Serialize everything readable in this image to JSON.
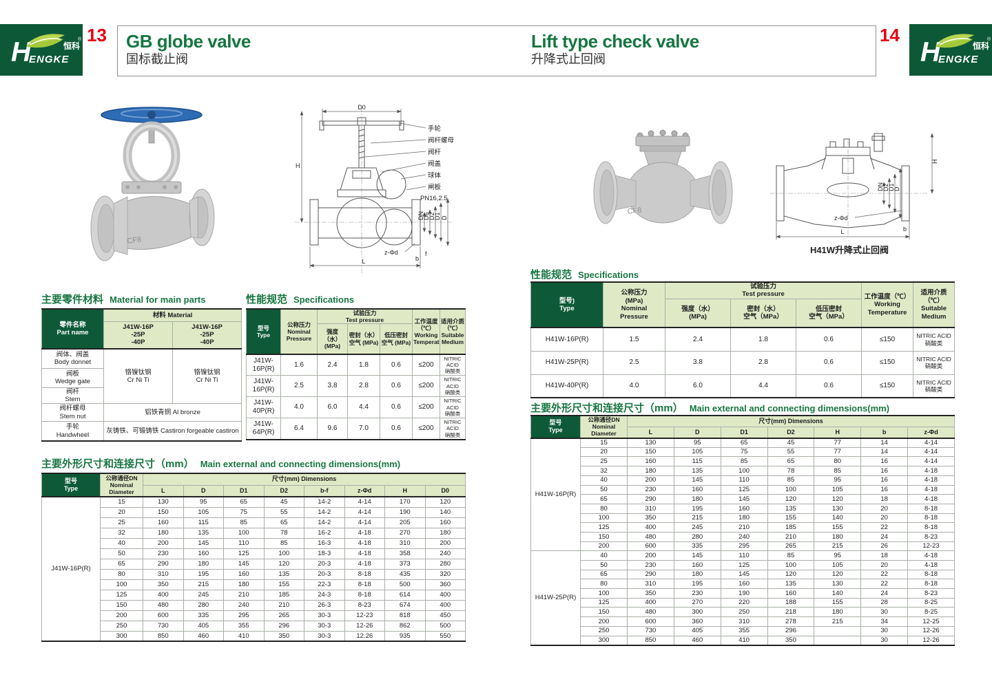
{
  "brand": {
    "h": "H",
    "engke": "ENGKE",
    "cn": "恒科",
    "reg": "®"
  },
  "header": {
    "left_page_num": "13",
    "right_page_num": "14",
    "left_title_en": "GB globe valve",
    "left_title_cn": "国标截止阀",
    "right_title_en": "Lift type check valve",
    "right_title_cn": "升降式止回阀"
  },
  "colors": {
    "dark_green": "#0d5937",
    "light_green": "#dfe9c6",
    "accent_green": "#177641",
    "red": "#e60012"
  },
  "left_page": {
    "material_section_cn": "主要零件材料",
    "material_section_en": "Material for main parts",
    "material_table": {
      "part_name": "零件名称\nPart name",
      "material": "材料 Material",
      "model_a": "J41W-16P\n-25P\n-40P",
      "model_b": "J41W-16P\n-25P\n-40P",
      "row_body": "阀体、阀盖\nBody donnet",
      "row_wedge": "阀板\nWedge gate",
      "row_stem": "阀杆\nStem",
      "row_stemnut": "阀杆螺母\nStem nut",
      "row_handwheel": "手轮\nHandwheel",
      "mat_crniti_a": "铬镍钛钢\nCr Ni Ti",
      "mat_crniti_b": "铬镍钛钢\nCr Ni Ti",
      "mat_bronze": "铝铁青铜 Al bronze",
      "mat_castiron": "灰铸铁、可锻铸铁 Castiron forgeable castiron"
    },
    "spec_section_cn": "性能规范",
    "spec_section_en": "Specifications",
    "spec_table": {
      "h_type": "型号\nType",
      "h_nominal": "公称压力\nNominal\nPressure",
      "h_test": "试验压力\nTest pressure",
      "h_strength": "强度（水）\n(MPa)",
      "h_seal": "密封（水）\n空气 (MPa)",
      "h_lowseal": "低压密封\n空气 (MPa)",
      "h_temp": "工作温度\n（℃）\nWorking\nTemperature",
      "h_medium": "适用介质\n（℃）\nSuitable\nMedium",
      "rows": [
        [
          "J41W-16P(R)",
          "1.6",
          "2.4",
          "1.8",
          "0.6",
          "≤200",
          "NITRIC ACID\n硝酸类"
        ],
        [
          "J41W-16P(R)",
          "2.5",
          "3.8",
          "2.8",
          "0.6",
          "≤200",
          "NITRIC ACID\n硝酸类"
        ],
        [
          "J41W-40P(R)",
          "4.0",
          "6.0",
          "4.4",
          "0.6",
          "≤200",
          "NITRIC ACID\n硝酸类"
        ],
        [
          "J41W-64P(R)",
          "6.4",
          "9.6",
          "7.0",
          "0.6",
          "≤200",
          "NITRIC ACID\n硝酸类"
        ]
      ]
    },
    "dim_section_cn": "主要外形尺寸和连接尺寸（mm）",
    "dim_section_en": "Main external and connecting dimensions(mm)",
    "dim_table": {
      "h_type": "型号\nType",
      "h_dn": "公称通径DN\nNominal\nDiameter",
      "h_dims": "尺寸(mm) Dimensions",
      "cols": [
        "L",
        "D",
        "D1",
        "D2",
        "b-f",
        "z-Φd",
        "H",
        "D0"
      ],
      "groups": [
        {
          "label": "J41W-16P(R)",
          "span": 14
        }
      ],
      "rows": [
        [
          "15",
          "130",
          "95",
          "65",
          "45",
          "14-2",
          "4-14",
          "170",
          "120"
        ],
        [
          "20",
          "150",
          "105",
          "75",
          "55",
          "14-2",
          "4-14",
          "190",
          "140"
        ],
        [
          "25",
          "160",
          "115",
          "85",
          "65",
          "14-2",
          "4-14",
          "205",
          "160"
        ],
        [
          "32",
          "180",
          "135",
          "100",
          "78",
          "16-2",
          "4-18",
          "270",
          "180"
        ],
        [
          "40",
          "200",
          "145",
          "110",
          "85",
          "16-3",
          "4-18",
          "310",
          "200"
        ],
        [
          "50",
          "230",
          "160",
          "125",
          "100",
          "18-3",
          "4-18",
          "358",
          "240"
        ],
        [
          "65",
          "290",
          "180",
          "145",
          "120",
          "20-3",
          "4-18",
          "373",
          "280"
        ],
        [
          "80",
          "310",
          "195",
          "160",
          "135",
          "20-3",
          "8-18",
          "435",
          "320"
        ],
        [
          "100",
          "350",
          "215",
          "180",
          "155",
          "22-3",
          "8-18",
          "500",
          "360"
        ],
        [
          "125",
          "400",
          "245",
          "210",
          "185",
          "24-3",
          "8-18",
          "614",
          "400"
        ],
        [
          "150",
          "480",
          "280",
          "240",
          "210",
          "26-3",
          "8-23",
          "674",
          "400"
        ],
        [
          "200",
          "600",
          "335",
          "295",
          "265",
          "30-3",
          "12-23",
          "818",
          "450"
        ],
        [
          "250",
          "730",
          "405",
          "355",
          "296",
          "30-3",
          "12-26",
          "862",
          "500"
        ],
        [
          "300",
          "850",
          "460",
          "410",
          "350",
          "30-3",
          "12.26",
          "935",
          "550"
        ]
      ]
    },
    "drawing": {
      "dim_d0": "D0",
      "dim_h": "H",
      "dim_l": "L",
      "dim_b": "b",
      "dim_f": "f",
      "dim_zd": "z-Φd",
      "pn": "PN16,2.5",
      "stack": [
        "DN",
        "D6",
        "D2",
        "D1",
        "D"
      ],
      "callout_handwheel": "手轮",
      "callout_stemnut": "阀杆螺母",
      "callout_stem": "阀杆",
      "callout_bonnet": "阀盖",
      "callout_ball": "球体",
      "callout_disc": "闸板"
    },
    "photo_marking": "CF8"
  },
  "right_page": {
    "spec_section_cn": "性能规范",
    "spec_section_en": "Specifications",
    "spec_table": {
      "h_type": "型号)\nType",
      "h_nominal": "公称压力\n(MPa)\nNominal\nPressure",
      "h_test": "试验压力\nTest pressure",
      "h_strength": "强度（水）\n(MPa)",
      "h_seal": "密封（水）\n空气（MPa）",
      "h_lowseal": "低压密封\n空气（MPa）",
      "h_temp": "工作温度（℃）\nWorking\nTemperature",
      "h_medium": "适用介质（℃）\nSuitable\nMedium",
      "rows": [
        [
          "H41W-16P(R)",
          "1.5",
          "2.4",
          "1.8",
          "0.6",
          "≤150",
          "NITRIC ACID\n硝酸类"
        ],
        [
          "H41W-25P(R)",
          "2.5",
          "3.8",
          "2.8",
          "0.6",
          "≤150",
          "NITRIC ACID\n硝酸类"
        ],
        [
          "H41W-40P(R)",
          "4.0",
          "6.0",
          "4.4",
          "0.6",
          "≤150",
          "NITRIC ACID\n硝酸类"
        ]
      ]
    },
    "dim_section_cn": "主要外形尺寸和连接尺寸（mm）",
    "dim_section_en": "Main external and connecting dimensions(mm)",
    "dim_table": {
      "h_type": "型号\nType",
      "h_dn": "公称通径DN\nNominal\nDiameter",
      "h_dims": "尺寸(mm) Dimensions",
      "cols": [
        "L",
        "D",
        "D1",
        "D2",
        "H",
        "b",
        "z-Φd"
      ],
      "groups": [
        {
          "label": "H41W-16P(R)",
          "span": 12
        },
        {
          "label": "H41W-25P(R)",
          "span": 10
        }
      ],
      "rows": [
        [
          "15",
          "130",
          "95",
          "65",
          "45",
          "77",
          "14",
          "4-14"
        ],
        [
          "20",
          "150",
          "105",
          "75",
          "55",
          "77",
          "14",
          "4-14"
        ],
        [
          "25",
          "160",
          "115",
          "85",
          "65",
          "80",
          "16",
          "4-14"
        ],
        [
          "32",
          "180",
          "135",
          "100",
          "78",
          "85",
          "16",
          "4-18"
        ],
        [
          "40",
          "200",
          "145",
          "110",
          "85",
          "95",
          "16",
          "4-18"
        ],
        [
          "50",
          "230",
          "160",
          "125",
          "100",
          "105",
          "16",
          "4-18"
        ],
        [
          "65",
          "290",
          "180",
          "145",
          "120",
          "120",
          "18",
          "4-18"
        ],
        [
          "80",
          "310",
          "195",
          "160",
          "135",
          "130",
          "20",
          "8-18"
        ],
        [
          "100",
          "350",
          "215",
          "180",
          "155",
          "140",
          "20",
          "8-18"
        ],
        [
          "125",
          "400",
          "245",
          "210",
          "185",
          "155",
          "22",
          "8-18"
        ],
        [
          "150",
          "480",
          "280",
          "240",
          "210",
          "180",
          "24",
          "8-23"
        ],
        [
          "200",
          "600",
          "335",
          "295",
          "265",
          "215",
          "26",
          "12-23"
        ],
        [
          "40",
          "200",
          "145",
          "110",
          "85",
          "95",
          "18",
          "4-18"
        ],
        [
          "50",
          "230",
          "160",
          "125",
          "100",
          "105",
          "20",
          "4-18"
        ],
        [
          "65",
          "290",
          "180",
          "145",
          "120",
          "120",
          "22",
          "8-18"
        ],
        [
          "80",
          "310",
          "195",
          "160",
          "135",
          "130",
          "22",
          "8-18"
        ],
        [
          "100",
          "350",
          "230",
          "190",
          "160",
          "140",
          "24",
          "8-23"
        ],
        [
          "125",
          "400",
          "270",
          "220",
          "188",
          "155",
          "28",
          "8-25"
        ],
        [
          "150",
          "480",
          "300",
          "250",
          "218",
          "180",
          "30",
          "8-25"
        ],
        [
          "200",
          "600",
          "360",
          "310",
          "278",
          "215",
          "34",
          "12-25"
        ],
        [
          "250",
          "730",
          "405",
          "355",
          "296",
          "",
          "30",
          "12-26"
        ],
        [
          "300",
          "850",
          "460",
          "410",
          "350",
          "",
          "30",
          "12-26"
        ]
      ]
    },
    "drawing": {
      "dim_h": "H",
      "dim_l": "L",
      "dim_b": "b",
      "dim_zd": "z-Φd",
      "stack": [
        "DN",
        "D2",
        "D1",
        "D"
      ],
      "caption": "H41W升降式止回阀"
    },
    "photo_marking": "CF8"
  }
}
